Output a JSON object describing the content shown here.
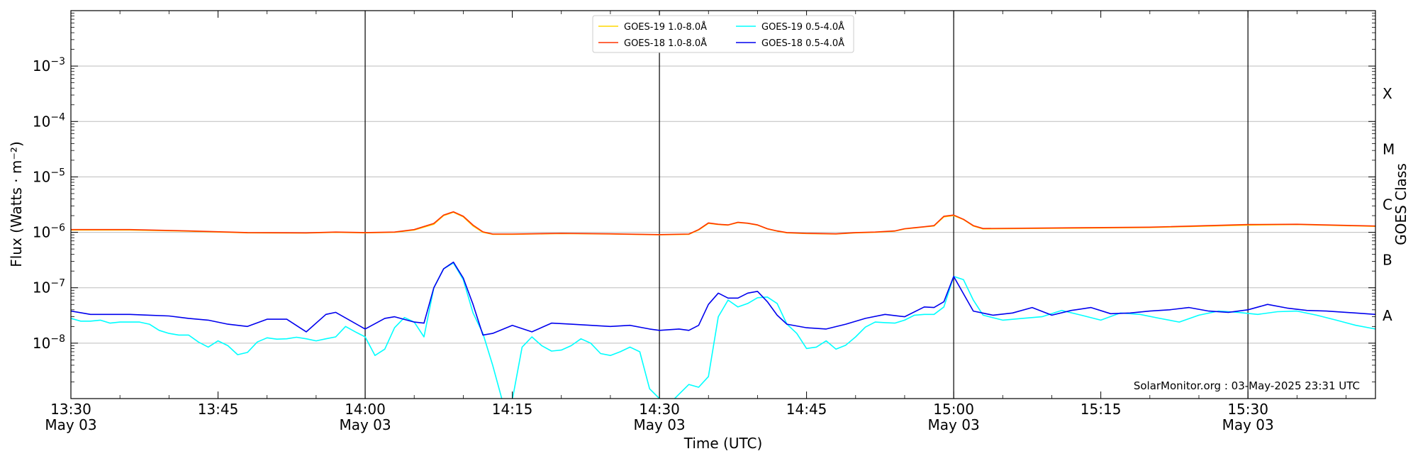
{
  "chart_data": {
    "type": "line",
    "xlabel": "Time (UTC)",
    "ylabel": "Flux (Watts · m⁻²)",
    "y2label": "GOES Class",
    "yscale": "log",
    "xlim": [
      "13:30",
      "15:43"
    ],
    "ylim": [
      1e-09,
      0.01
    ],
    "grid": "horizontal",
    "legend_position": "top-center",
    "x_ticks": [
      {
        "t": "13:30",
        "label": "13:30",
        "sublabel": "May 03"
      },
      {
        "t": "13:45",
        "label": "13:45",
        "sublabel": ""
      },
      {
        "t": "14:00",
        "label": "14:00",
        "sublabel": "May 03"
      },
      {
        "t": "14:15",
        "label": "14:15",
        "sublabel": ""
      },
      {
        "t": "14:30",
        "label": "14:30",
        "sublabel": "May 03"
      },
      {
        "t": "14:45",
        "label": "14:45",
        "sublabel": ""
      },
      {
        "t": "15:00",
        "label": "15:00",
        "sublabel": "May 03"
      },
      {
        "t": "15:15",
        "label": "15:15",
        "sublabel": ""
      },
      {
        "t": "15:30",
        "label": "15:30",
        "sublabel": "May 03"
      }
    ],
    "vlines": [
      "14:00",
      "14:30",
      "15:00",
      "15:30"
    ],
    "y_ticks": [
      {
        "value": 1e-08,
        "base": "10",
        "exp": "−8"
      },
      {
        "value": 1e-07,
        "base": "10",
        "exp": "−7"
      },
      {
        "value": 1e-06,
        "base": "10",
        "exp": "−6"
      },
      {
        "value": 1e-05,
        "base": "10",
        "exp": "−5"
      },
      {
        "value": 0.0001,
        "base": "10",
        "exp": "−4"
      },
      {
        "value": 0.001,
        "base": "10",
        "exp": "−3"
      }
    ],
    "goes_classes": [
      {
        "label": "A",
        "value": 3.16e-08
      },
      {
        "label": "B",
        "value": 3.16e-07
      },
      {
        "label": "C",
        "value": 3.16e-06
      },
      {
        "label": "M",
        "value": 3.16e-05
      },
      {
        "label": "X",
        "value": 0.000316
      }
    ],
    "annotation": "SolarMonitor.org : 03-May-2025 23:31 UTC",
    "series": [
      {
        "name": "GOES-19 1.0-8.0Å",
        "color": "#ffd700",
        "x": [
          "13:30",
          "13:36",
          "13:42",
          "13:48",
          "13:54",
          "13:57",
          "14:00",
          "14:03",
          "14:05",
          "14:07",
          "14:08",
          "14:09",
          "14:10",
          "14:11",
          "14:12",
          "14:13",
          "14:15",
          "14:20",
          "14:25",
          "14:30",
          "14:33",
          "14:34",
          "14:35",
          "14:36",
          "14:37",
          "14:38",
          "14:39",
          "14:40",
          "14:41",
          "14:42",
          "14:43",
          "14:45",
          "14:48",
          "14:50",
          "14:52",
          "14:54",
          "14:55",
          "14:56",
          "14:57",
          "14:58",
          "14:59",
          "15:00",
          "15:01",
          "15:02",
          "15:03",
          "15:10",
          "15:20",
          "15:30",
          "15:35",
          "15:43"
        ],
        "y": [
          1.1e-06,
          1.1e-06,
          1.05e-06,
          9.8e-07,
          9.7e-07,
          1e-06,
          9.8e-07,
          1e-06,
          1.1e-06,
          1.4e-06,
          2e-06,
          2.3e-06,
          1.9e-06,
          1.3e-06,
          1e-06,
          9.2e-07,
          9.2e-07,
          9.5e-07,
          9.3e-07,
          9e-07,
          9.2e-07,
          1.1e-06,
          1.45e-06,
          1.38e-06,
          1.35e-06,
          1.5e-06,
          1.45e-06,
          1.35e-06,
          1.15e-06,
          1.05e-06,
          9.8e-07,
          9.5e-07,
          9.3e-07,
          9.8e-07,
          1e-06,
          1.05e-06,
          1.15e-06,
          1.2e-06,
          1.25e-06,
          1.3e-06,
          1.9e-06,
          2e-06,
          1.7e-06,
          1.3e-06,
          1.15e-06,
          1.18e-06,
          1.22e-06,
          1.35e-06,
          1.38e-06,
          1.28e-06
        ]
      },
      {
        "name": "GOES-18 1.0-8.0Å",
        "color": "#ff3300",
        "x": [
          "13:30",
          "13:36",
          "13:42",
          "13:48",
          "13:54",
          "13:57",
          "14:00",
          "14:03",
          "14:05",
          "14:07",
          "14:08",
          "14:09",
          "14:10",
          "14:11",
          "14:12",
          "14:13",
          "14:15",
          "14:20",
          "14:25",
          "14:30",
          "14:33",
          "14:34",
          "14:35",
          "14:36",
          "14:37",
          "14:38",
          "14:39",
          "14:40",
          "14:41",
          "14:42",
          "14:43",
          "14:45",
          "14:48",
          "14:50",
          "14:52",
          "14:54",
          "14:55",
          "14:56",
          "14:57",
          "14:58",
          "14:59",
          "15:00",
          "15:01",
          "15:02",
          "15:03",
          "15:10",
          "15:20",
          "15:30",
          "15:35",
          "15:43"
        ],
        "y": [
          1.12e-06,
          1.12e-06,
          1.06e-06,
          9.9e-07,
          9.8e-07,
          1.01e-06,
          9.9e-07,
          1.01e-06,
          1.12e-06,
          1.45e-06,
          2.05e-06,
          2.35e-06,
          1.95e-06,
          1.35e-06,
          1.02e-06,
          9.3e-07,
          9.3e-07,
          9.6e-07,
          9.4e-07,
          9.1e-07,
          9.3e-07,
          1.12e-06,
          1.48e-06,
          1.4e-06,
          1.36e-06,
          1.52e-06,
          1.46e-06,
          1.36e-06,
          1.16e-06,
          1.06e-06,
          9.9e-07,
          9.6e-07,
          9.4e-07,
          9.9e-07,
          1.01e-06,
          1.06e-06,
          1.16e-06,
          1.21e-06,
          1.26e-06,
          1.32e-06,
          1.95e-06,
          2.05e-06,
          1.72e-06,
          1.32e-06,
          1.17e-06,
          1.2e-06,
          1.24e-06,
          1.38e-06,
          1.4e-06,
          1.3e-06
        ]
      },
      {
        "name": "GOES-19 0.5-4.0Å",
        "color": "#00ffff",
        "x": [
          "13:30",
          "13:31",
          "13:32",
          "13:33",
          "13:34",
          "13:35",
          "13:36",
          "13:37",
          "13:38",
          "13:39",
          "13:40",
          "13:41",
          "13:42",
          "13:43",
          "13:44",
          "13:45",
          "13:46",
          "13:47",
          "13:48",
          "13:49",
          "13:50",
          "13:51",
          "13:52",
          "13:53",
          "13:54",
          "13:55",
          "13:56",
          "13:57",
          "13:58",
          "13:59",
          "14:00",
          "14:01",
          "14:02",
          "14:03",
          "14:04",
          "14:05",
          "14:06",
          "14:07",
          "14:08",
          "14:09",
          "14:10",
          "14:11",
          "14:12",
          "14:13",
          "14:14",
          "14:15",
          "14:16",
          "14:17",
          "14:18",
          "14:19",
          "14:20",
          "14:21",
          "14:22",
          "14:23",
          "14:24",
          "14:25",
          "14:26",
          "14:27",
          "14:28",
          "14:29",
          "14:30",
          "14:31",
          "14:32",
          "14:33",
          "14:34",
          "14:35",
          "14:36",
          "14:37",
          "14:38",
          "14:39",
          "14:40",
          "14:41",
          "14:42",
          "14:43",
          "14:44",
          "14:45",
          "14:46",
          "14:47",
          "14:48",
          "14:49",
          "14:50",
          "14:51",
          "14:52",
          "14:53",
          "14:54",
          "14:55",
          "14:56",
          "14:57",
          "14:58",
          "14:59",
          "15:00",
          "15:01",
          "15:02",
          "15:03",
          "15:05",
          "15:07",
          "15:09",
          "15:11",
          "15:13",
          "15:15",
          "15:17",
          "15:19",
          "15:21",
          "15:23",
          "15:25",
          "15:27",
          "15:29",
          "15:31",
          "15:33",
          "15:35",
          "15:37",
          "15:39",
          "15:41",
          "15:43"
        ],
        "y": [
          2.8e-08,
          2.5e-08,
          2.5e-08,
          2.6e-08,
          2.3e-08,
          2.4e-08,
          2.4e-08,
          2.4e-08,
          2.2e-08,
          1.7e-08,
          1.5e-08,
          1.4e-08,
          1.4e-08,
          1.05e-08,
          8.5e-09,
          1.1e-08,
          9e-09,
          6.2e-09,
          6.8e-09,
          1.05e-08,
          1.25e-08,
          1.18e-08,
          1.2e-08,
          1.28e-08,
          1.2e-08,
          1.1e-08,
          1.2e-08,
          1.3e-08,
          2e-08,
          1.6e-08,
          1.3e-08,
          6e-09,
          7.8e-09,
          1.9e-08,
          2.9e-08,
          2.4e-08,
          1.3e-08,
          1e-07,
          2.2e-07,
          2.8e-07,
          1.4e-07,
          3.5e-08,
          1.5e-08,
          4e-09,
          9e-10,
          9.5e-10,
          8.5e-09,
          1.3e-08,
          9e-09,
          7.2e-09,
          7.5e-09,
          9e-09,
          1.2e-08,
          1e-08,
          6.5e-09,
          6e-09,
          7e-09,
          8.5e-09,
          7e-09,
          1.5e-09,
          1e-09,
          8e-10,
          1.2e-09,
          1.8e-09,
          1.6e-09,
          2.5e-09,
          3e-08,
          6e-08,
          4.5e-08,
          5.2e-08,
          6.6e-08,
          6.8e-08,
          5.2e-08,
          2.2e-08,
          1.5e-08,
          8e-09,
          8.5e-09,
          1.1e-08,
          7.8e-09,
          9.2e-09,
          1.3e-08,
          1.95e-08,
          2.4e-08,
          2.35e-08,
          2.3e-08,
          2.6e-08,
          3.2e-08,
          3.3e-08,
          3.3e-08,
          4.5e-08,
          1.6e-07,
          1.4e-07,
          6e-08,
          3.2e-08,
          2.6e-08,
          2.8e-08,
          3e-08,
          3.9e-08,
          3.2e-08,
          2.6e-08,
          3.5e-08,
          3.3e-08,
          2.8e-08,
          2.4e-08,
          3.2e-08,
          3.8e-08,
          3.6e-08,
          3.3e-08,
          3.7e-08,
          3.8e-08,
          3.2e-08,
          2.6e-08,
          2.1e-08,
          1.8e-08
        ]
      },
      {
        "name": "GOES-18 0.5-4.0Å",
        "color": "#0000ee",
        "x": [
          "13:30",
          "13:32",
          "13:34",
          "13:36",
          "13:38",
          "13:40",
          "13:42",
          "13:44",
          "13:46",
          "13:48",
          "13:50",
          "13:52",
          "13:54",
          "13:56",
          "13:57",
          "14:00",
          "14:02",
          "14:03",
          "14:05",
          "14:06",
          "14:07",
          "14:08",
          "14:09",
          "14:10",
          "14:11",
          "14:12",
          "14:13",
          "14:15",
          "14:17",
          "14:19",
          "14:21",
          "14:23",
          "14:25",
          "14:27",
          "14:29",
          "14:30",
          "14:32",
          "14:33",
          "14:34",
          "14:35",
          "14:36",
          "14:37",
          "14:38",
          "14:39",
          "14:40",
          "14:41",
          "14:42",
          "14:43",
          "14:45",
          "14:47",
          "14:49",
          "14:51",
          "14:53",
          "14:55",
          "14:57",
          "14:58",
          "14:59",
          "15:00",
          "15:02",
          "15:04",
          "15:06",
          "15:08",
          "15:10",
          "15:12",
          "15:14",
          "15:16",
          "15:18",
          "15:20",
          "15:22",
          "15:24",
          "15:26",
          "15:28",
          "15:30",
          "15:32",
          "15:34",
          "15:36",
          "15:38",
          "15:40",
          "15:43"
        ],
        "y": [
          3.8e-08,
          3.3e-08,
          3.3e-08,
          3.3e-08,
          3.2e-08,
          3.1e-08,
          2.8e-08,
          2.6e-08,
          2.2e-08,
          2e-08,
          2.7e-08,
          2.7e-08,
          1.6e-08,
          3.3e-08,
          3.6e-08,
          1.8e-08,
          2.8e-08,
          3e-08,
          2.4e-08,
          2.3e-08,
          1e-07,
          2.2e-07,
          2.9e-07,
          1.5e-07,
          5e-08,
          1.4e-08,
          1.5e-08,
          2.1e-08,
          1.6e-08,
          2.3e-08,
          2.2e-08,
          2.1e-08,
          2e-08,
          2.1e-08,
          1.8e-08,
          1.7e-08,
          1.8e-08,
          1.7e-08,
          2.1e-08,
          5e-08,
          8e-08,
          6.5e-08,
          6.5e-08,
          8e-08,
          8.6e-08,
          5.6e-08,
          3.2e-08,
          2.2e-08,
          1.9e-08,
          1.8e-08,
          2.2e-08,
          2.8e-08,
          3.3e-08,
          3e-08,
          4.5e-08,
          4.4e-08,
          5.6e-08,
          1.6e-07,
          3.8e-08,
          3.2e-08,
          3.5e-08,
          4.4e-08,
          3.2e-08,
          3.9e-08,
          4.4e-08,
          3.4e-08,
          3.5e-08,
          3.8e-08,
          4e-08,
          4.4e-08,
          3.8e-08,
          3.6e-08,
          4e-08,
          5e-08,
          4.3e-08,
          3.9e-08,
          3.8e-08,
          3.6e-08,
          3.3e-08
        ]
      }
    ]
  }
}
